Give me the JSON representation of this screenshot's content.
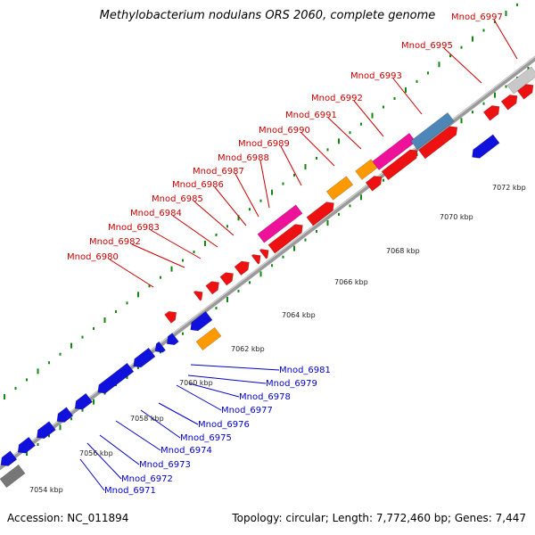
{
  "title": "Methylobacterium nodulans ORS 2060, complete genome",
  "footer": {
    "accession": "Accession: NC_011894",
    "stats": "Topology: circular; Length: 7,772,460 bp; Genes: 7,447"
  },
  "colors": {
    "forward_label": "#cc0000",
    "reverse_label": "#0000cc",
    "gene_red": "#ee1111",
    "gene_blue": "#1111dd",
    "gene_orange": "#ff9900",
    "gene_magenta": "#ee1199",
    "gene_steelblue": "#4f86b8",
    "gene_gray": "#777777",
    "gene_lightgray": "#c8c8c8",
    "backbone": "#999999",
    "tick_green": "#118811"
  },
  "ruler": [
    "7054 kbp",
    "7056 kbp",
    "7058 kbp",
    "7060 kbp",
    "7062 kbp",
    "7064 kbp",
    "7066 kbp",
    "7068 kbp",
    "7070 kbp",
    "7072 kbp"
  ],
  "forward_labels": [
    "Mnod_6980",
    "Mnod_6982",
    "Mnod_6983",
    "Mnod_6984",
    "Mnod_6985",
    "Mnod_6986",
    "Mnod_6987",
    "Mnod_6988",
    "Mnod_6989",
    "Mnod_6990",
    "Mnod_6991",
    "Mnod_6992",
    "Mnod_6993",
    "Mnod_6995",
    "Mnod_6997"
  ],
  "reverse_labels": [
    "Mnod_6981",
    "Mnod_6979",
    "Mnod_6978",
    "Mnod_6977",
    "Mnod_6976",
    "Mnod_6975",
    "Mnod_6974",
    "Mnod_6973",
    "Mnod_6972",
    "Mnod_6971"
  ]
}
